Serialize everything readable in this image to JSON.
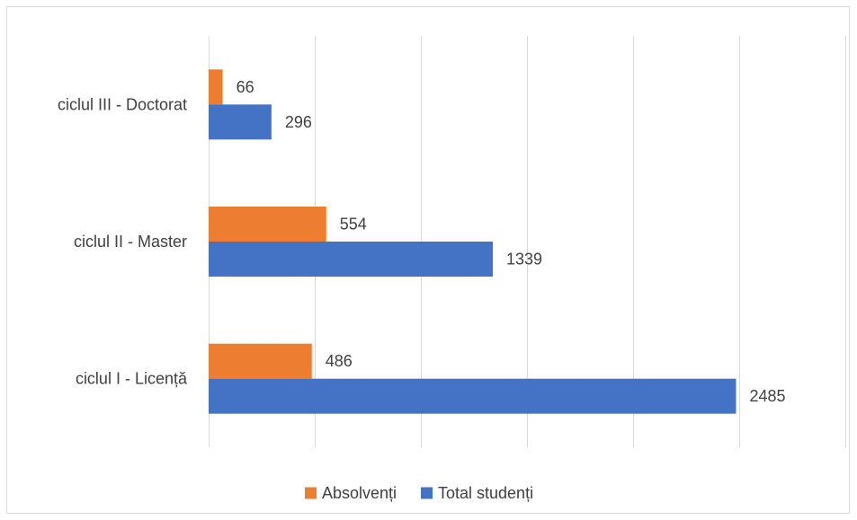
{
  "chart_data": {
    "type": "bar",
    "orientation": "horizontal",
    "title": "",
    "xlabel": "",
    "ylabel": "",
    "categories": [
      "ciclul I - Licență",
      "ciclul II - Master",
      "ciclul III - Doctorat"
    ],
    "series": [
      {
        "name": "Absolvenți",
        "values": [
          486,
          554,
          66
        ],
        "color": "#ed7d31"
      },
      {
        "name": "Total studenți",
        "values": [
          2485,
          1339,
          296
        ],
        "color": "#4472c4"
      }
    ],
    "xlim": [
      0,
      3000
    ],
    "x_gridlines": true,
    "x_tick_labels_shown": false,
    "data_labels": true,
    "legend_position": "bottom"
  }
}
